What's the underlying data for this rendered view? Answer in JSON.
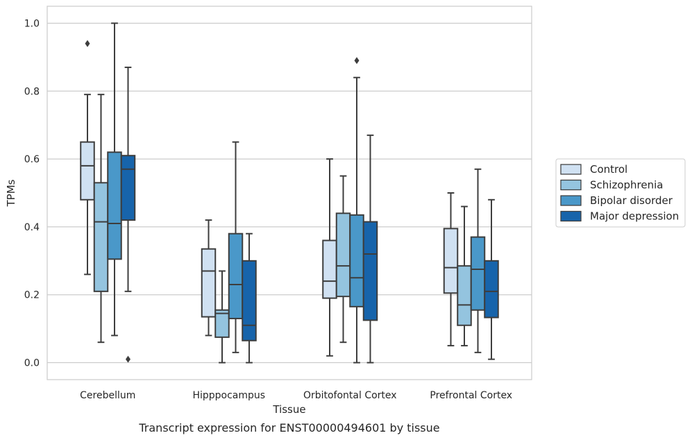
{
  "caption": "Transcript expression for ENST00000494601 by tissue",
  "chart_data": {
    "type": "box",
    "title": "",
    "xlabel": "Tissue",
    "ylabel": "TPMs",
    "ylim": [
      -0.05,
      1.05
    ],
    "yticks": [
      0.0,
      0.2,
      0.4,
      0.6,
      0.8,
      1.0
    ],
    "ytick_labels": [
      "0.0",
      "0.2",
      "0.4",
      "0.6",
      "0.8",
      "1.0"
    ],
    "grid": "horizontal",
    "legend_position": "right",
    "categories": [
      "Cerebellum",
      "Hipppocampus",
      "Orbitofontal Cortex",
      "Prefrontal Cortex"
    ],
    "series": [
      {
        "name": "Control",
        "color": "#d0e1f2",
        "boxes": [
          {
            "whislo": 0.26,
            "q1": 0.48,
            "med": 0.58,
            "q3": 0.65,
            "whishi": 0.79,
            "fliers": [
              0.94
            ]
          },
          {
            "whislo": 0.08,
            "q1": 0.135,
            "med": 0.27,
            "q3": 0.335,
            "whishi": 0.42,
            "fliers": []
          },
          {
            "whislo": 0.02,
            "q1": 0.19,
            "med": 0.24,
            "q3": 0.36,
            "whishi": 0.6,
            "fliers": []
          },
          {
            "whislo": 0.05,
            "q1": 0.205,
            "med": 0.28,
            "q3": 0.395,
            "whishi": 0.5,
            "fliers": []
          }
        ]
      },
      {
        "name": "Schizophrenia",
        "color": "#94c4df",
        "boxes": [
          {
            "whislo": 0.06,
            "q1": 0.21,
            "med": 0.415,
            "q3": 0.53,
            "whishi": 0.79,
            "fliers": []
          },
          {
            "whislo": 0.0,
            "q1": 0.075,
            "med": 0.145,
            "q3": 0.155,
            "whishi": 0.27,
            "fliers": []
          },
          {
            "whislo": 0.06,
            "q1": 0.195,
            "med": 0.285,
            "q3": 0.44,
            "whishi": 0.55,
            "fliers": []
          },
          {
            "whislo": 0.05,
            "q1": 0.11,
            "med": 0.17,
            "q3": 0.285,
            "whishi": 0.46,
            "fliers": []
          }
        ]
      },
      {
        "name": "Bipolar disorder",
        "color": "#4a98c9",
        "boxes": [
          {
            "whislo": 0.08,
            "q1": 0.305,
            "med": 0.41,
            "q3": 0.62,
            "whishi": 1.0,
            "fliers": []
          },
          {
            "whislo": 0.03,
            "q1": 0.13,
            "med": 0.23,
            "q3": 0.38,
            "whishi": 0.65,
            "fliers": []
          },
          {
            "whislo": 0.0,
            "q1": 0.165,
            "med": 0.25,
            "q3": 0.435,
            "whishi": 0.84,
            "fliers": [
              0.89
            ]
          },
          {
            "whislo": 0.03,
            "q1": 0.155,
            "med": 0.275,
            "q3": 0.37,
            "whishi": 0.57,
            "fliers": []
          }
        ]
      },
      {
        "name": "Major depression",
        "color": "#1764ab",
        "boxes": [
          {
            "whislo": 0.21,
            "q1": 0.42,
            "med": 0.57,
            "q3": 0.61,
            "whishi": 0.87,
            "fliers": [
              0.01
            ]
          },
          {
            "whislo": 0.0,
            "q1": 0.065,
            "med": 0.11,
            "q3": 0.3,
            "whishi": 0.38,
            "fliers": []
          },
          {
            "whislo": 0.0,
            "q1": 0.125,
            "med": 0.32,
            "q3": 0.415,
            "whishi": 0.67,
            "fliers": []
          },
          {
            "whislo": 0.01,
            "q1": 0.133,
            "med": 0.21,
            "q3": 0.3,
            "whishi": 0.48,
            "fliers": []
          }
        ]
      }
    ]
  }
}
